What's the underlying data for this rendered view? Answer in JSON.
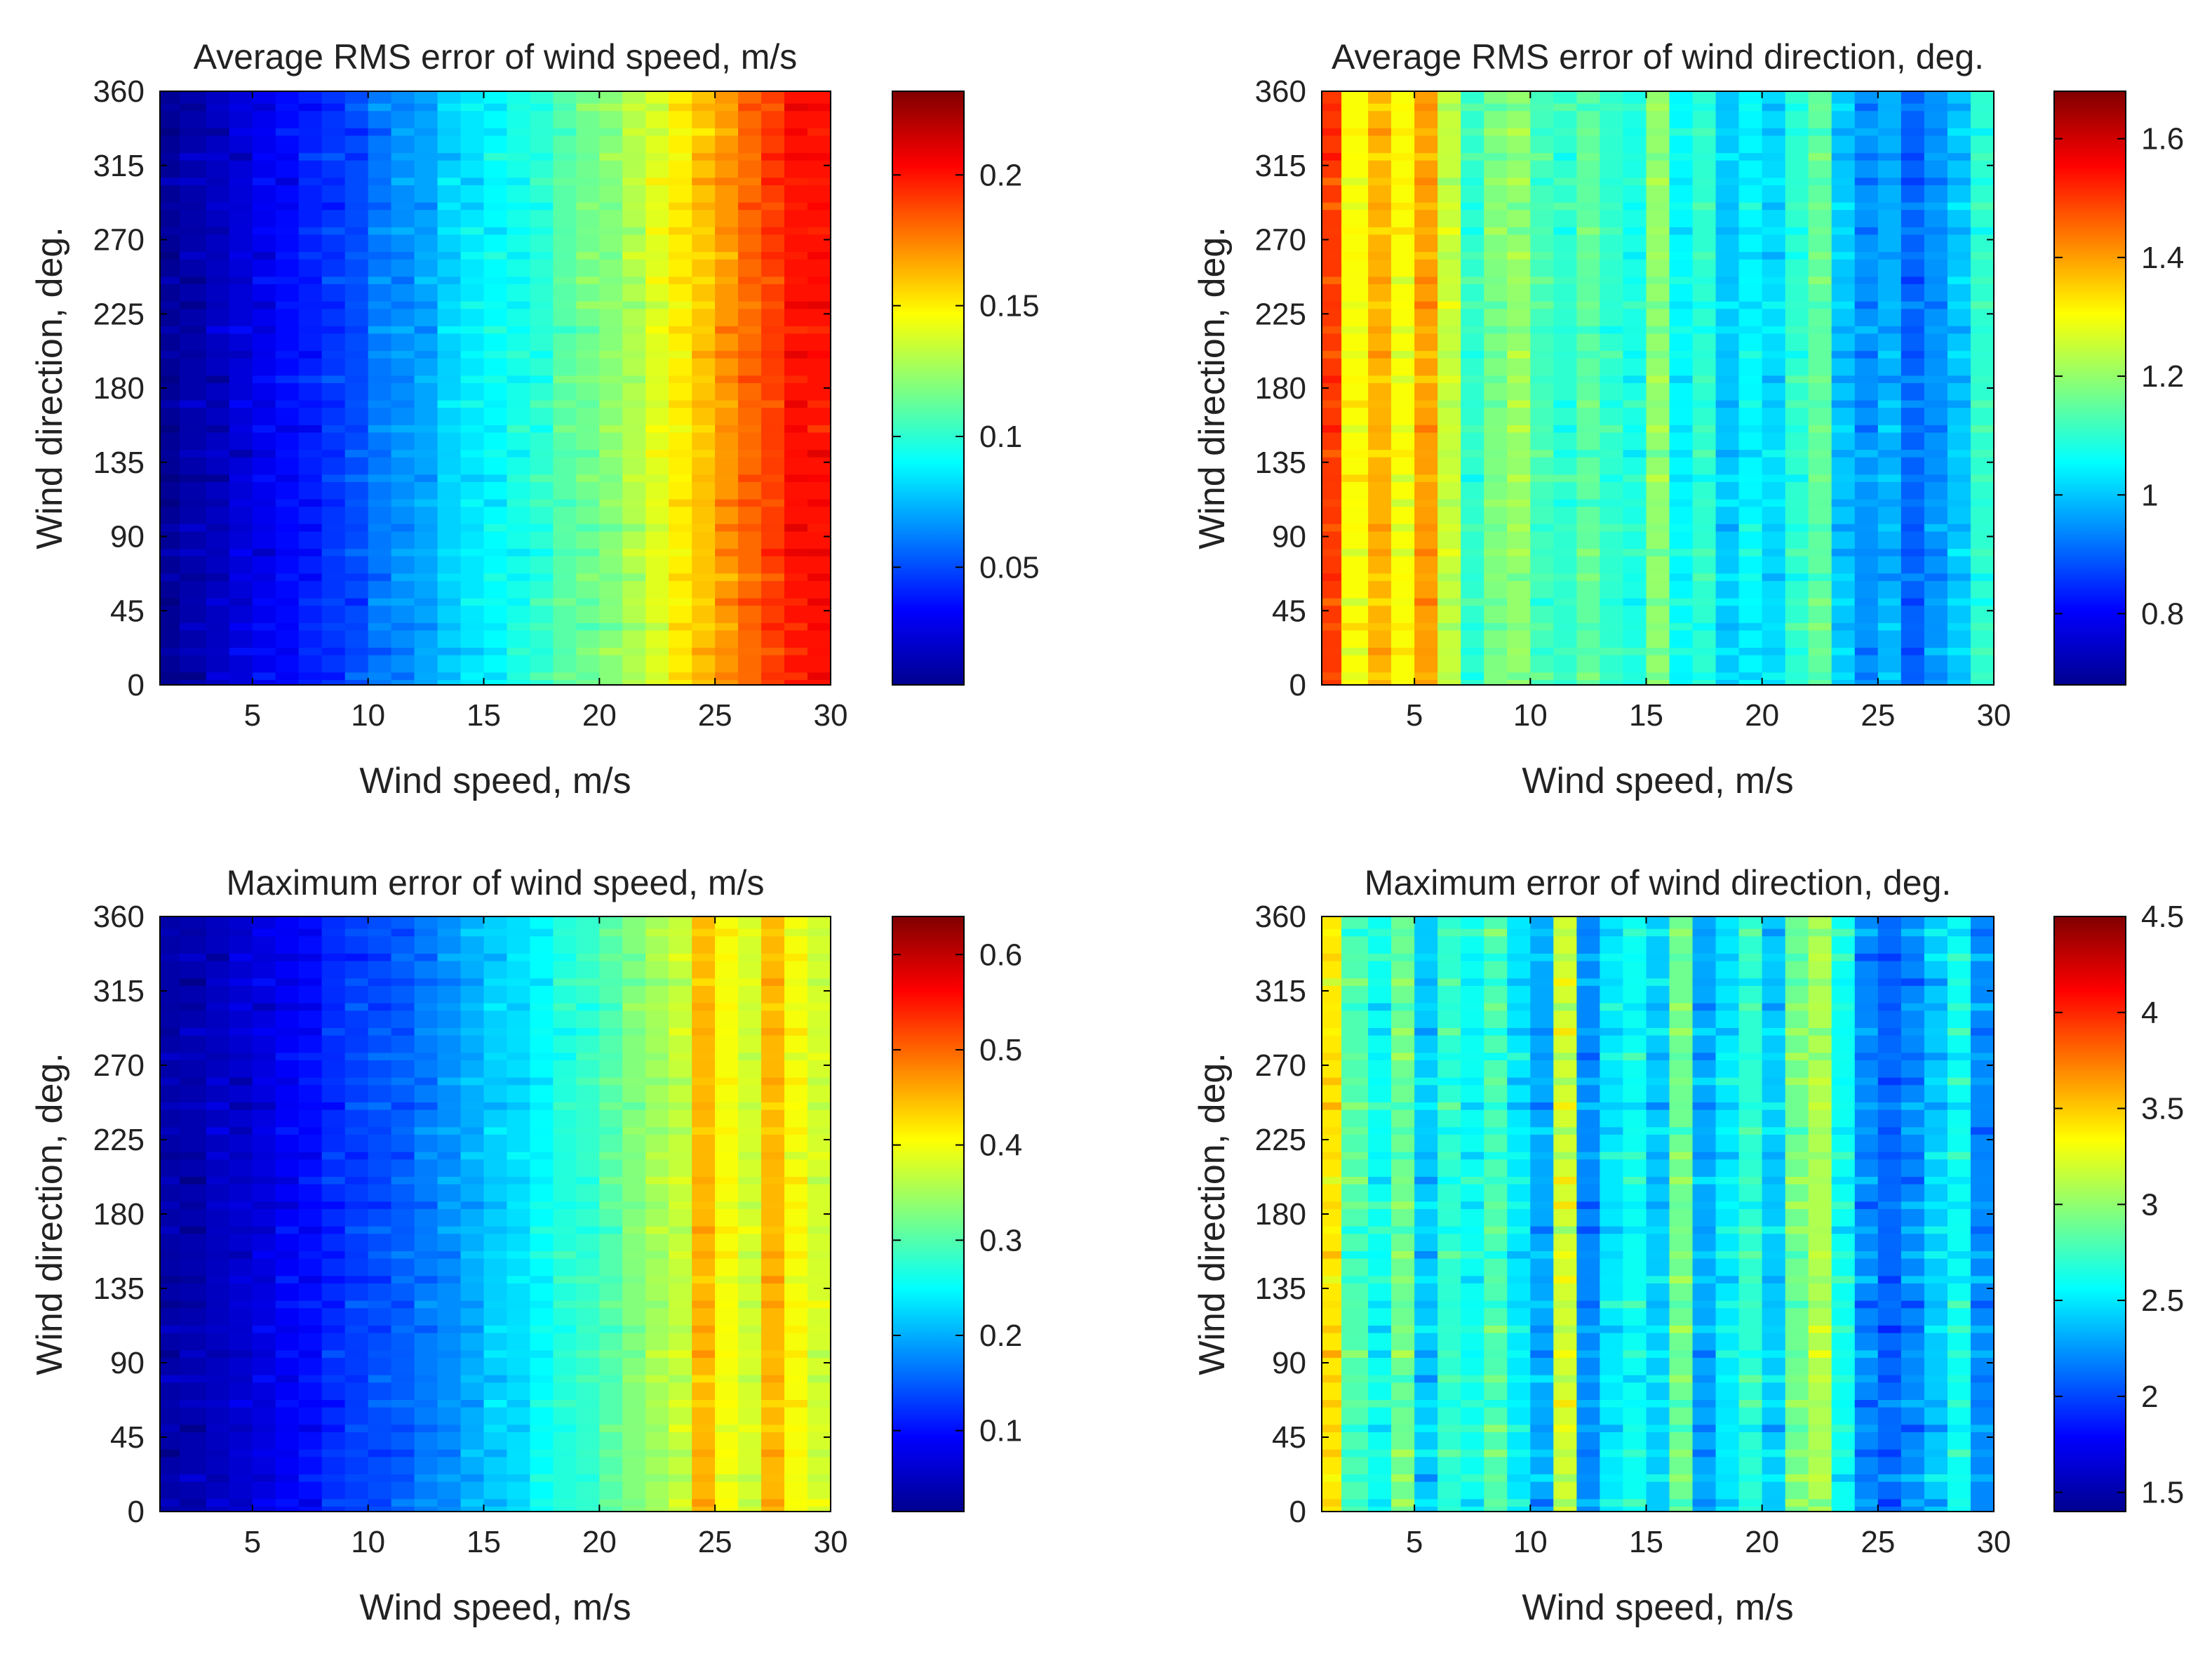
{
  "chart_data": [
    {
      "type": "heatmap",
      "title": "Average RMS error of wind speed, m/s",
      "xlabel": "Wind speed, m/s",
      "ylabel": "Wind direction, deg.",
      "xlim": [
        1,
        30
      ],
      "ylim": [
        0,
        360
      ],
      "xticks": [
        5,
        10,
        15,
        20,
        25,
        30
      ],
      "yticks": [
        0,
        45,
        90,
        135,
        180,
        225,
        270,
        315,
        360
      ],
      "clim": [
        0.005,
        0.232
      ],
      "cticks": [
        0.05,
        0.1,
        0.15,
        0.2
      ],
      "columns": [
        1.2,
        2.5,
        3.5,
        4.5,
        5.5,
        6.5,
        7.5,
        8.5,
        9.5,
        10.5,
        11.5,
        12.5,
        13.5,
        14.5,
        15.5,
        16.5,
        17.5,
        18.5,
        19.5,
        20.5,
        21.5,
        22.5,
        23.5,
        24.5,
        25.5,
        26.5,
        27.5,
        28.5,
        29.5
      ],
      "values": [
        0.01,
        0.015,
        0.02,
        0.025,
        0.03,
        0.035,
        0.04,
        0.045,
        0.05,
        0.06,
        0.065,
        0.07,
        0.08,
        0.085,
        0.09,
        0.095,
        0.1,
        0.11,
        0.115,
        0.12,
        0.13,
        0.14,
        0.15,
        0.16,
        0.17,
        0.18,
        0.19,
        0.2,
        0.2
      ],
      "noise": 0.012
    },
    {
      "type": "heatmap",
      "title": "Average RMS error of wind direction, deg.",
      "xlabel": "Wind speed, m/s",
      "ylabel": "Wind direction, deg.",
      "xlim": [
        1,
        30
      ],
      "ylim": [
        0,
        360
      ],
      "xticks": [
        5,
        10,
        15,
        20,
        25,
        30
      ],
      "yticks": [
        0,
        45,
        90,
        135,
        180,
        225,
        270,
        315,
        360
      ],
      "clim": [
        0.68,
        1.68
      ],
      "cticks": [
        0.8,
        1,
        1.2,
        1.4,
        1.6
      ],
      "columns": [
        1.2,
        2.5,
        3.5,
        4.5,
        5.5,
        6.5,
        7.5,
        8.5,
        9.5,
        10.5,
        11.5,
        12.5,
        13.5,
        14.5,
        15.5,
        16.5,
        17.5,
        18.5,
        19.5,
        20.5,
        21.5,
        22.5,
        23.5,
        24.5,
        25.5,
        26.5,
        27.5,
        28.5,
        29.5
      ],
      "values": [
        1.5,
        1.3,
        1.38,
        1.3,
        1.4,
        1.25,
        1.1,
        1.18,
        1.2,
        1.12,
        1.1,
        1.15,
        1.1,
        1.08,
        1.2,
        1.05,
        1.1,
        1.0,
        1.05,
        1.02,
        1.1,
        1.15,
        1.0,
        0.95,
        0.98,
        0.9,
        0.95,
        1.0,
        1.1
      ],
      "noise": 0.06
    },
    {
      "type": "heatmap",
      "title": "Maximum error of wind speed, m/s",
      "xlabel": "Wind speed, m/s",
      "ylabel": "Wind direction, deg.",
      "xlim": [
        1,
        30
      ],
      "ylim": [
        0,
        360
      ],
      "xticks": [
        5,
        10,
        15,
        20,
        25,
        30
      ],
      "yticks": [
        0,
        45,
        90,
        135,
        180,
        225,
        270,
        315,
        360
      ],
      "clim": [
        0.015,
        0.64
      ],
      "cticks": [
        0.1,
        0.2,
        0.3,
        0.4,
        0.5,
        0.6
      ],
      "columns": [
        1.2,
        2.5,
        3.5,
        4.5,
        5.5,
        6.5,
        7.5,
        8.5,
        9.5,
        10.5,
        11.5,
        12.5,
        13.5,
        14.5,
        15.5,
        16.5,
        17.5,
        18.5,
        19.5,
        20.5,
        21.5,
        22.5,
        23.5,
        24.5,
        25.5,
        26.5,
        27.5,
        28.5,
        29.5
      ],
      "values": [
        0.04,
        0.045,
        0.055,
        0.065,
        0.075,
        0.09,
        0.1,
        0.12,
        0.13,
        0.14,
        0.15,
        0.17,
        0.18,
        0.2,
        0.22,
        0.23,
        0.25,
        0.27,
        0.28,
        0.3,
        0.33,
        0.35,
        0.37,
        0.45,
        0.4,
        0.38,
        0.45,
        0.4,
        0.38
      ],
      "noise": 0.03
    },
    {
      "type": "heatmap",
      "title": "Maximum error of wind direction, deg.",
      "xlabel": "Wind speed, m/s",
      "ylabel": "Wind direction, deg.",
      "xlim": [
        1,
        30
      ],
      "ylim": [
        0,
        360
      ],
      "xticks": [
        5,
        10,
        15,
        20,
        25,
        30
      ],
      "yticks": [
        0,
        45,
        90,
        135,
        180,
        225,
        270,
        315,
        360
      ],
      "clim": [
        1.4,
        4.5
      ],
      "cticks": [
        1.5,
        2,
        2.5,
        3,
        3.5,
        4,
        4.5
      ],
      "columns": [
        1.2,
        2.5,
        3.5,
        4.5,
        5.5,
        6.5,
        7.5,
        8.5,
        9.5,
        10.5,
        11.5,
        12.5,
        13.5,
        14.5,
        15.5,
        16.5,
        17.5,
        18.5,
        19.5,
        20.5,
        21.5,
        22.5,
        23.5,
        24.5,
        25.5,
        26.5,
        27.5,
        28.5,
        29.5
      ],
      "values": [
        3.4,
        2.8,
        2.6,
        2.9,
        2.4,
        2.7,
        2.6,
        2.8,
        2.5,
        2.3,
        3.2,
        2.2,
        2.5,
        2.6,
        2.4,
        2.9,
        2.3,
        2.5,
        2.7,
        2.4,
        2.9,
        3.1,
        2.6,
        2.2,
        2.1,
        2.2,
        2.4,
        2.6,
        2.2
      ],
      "noise": 0.25
    }
  ]
}
